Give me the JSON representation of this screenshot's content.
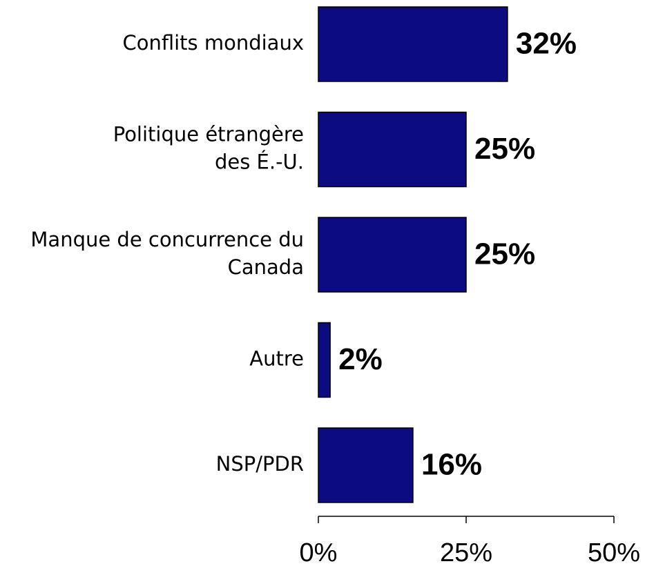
{
  "chart_data": {
    "type": "hbar",
    "categories": [
      [
        "Conflits mondiaux"
      ],
      [
        "Politique étrangère",
        "des É.-U."
      ],
      [
        "Manque de concurrence du",
        "Canada"
      ],
      [
        "Autre"
      ],
      [
        "NSP/PDR"
      ]
    ],
    "values": [
      32,
      25,
      25,
      2,
      16
    ],
    "value_labels": [
      "32%",
      "25%",
      "25%",
      "2%",
      "16%"
    ],
    "color": "#0c0c80",
    "xlim": [
      0,
      50
    ],
    "xticks": [
      {
        "value": 0,
        "label": "0%"
      },
      {
        "value": 25,
        "label": "25%"
      },
      {
        "value": 50,
        "label": "50%"
      }
    ]
  }
}
